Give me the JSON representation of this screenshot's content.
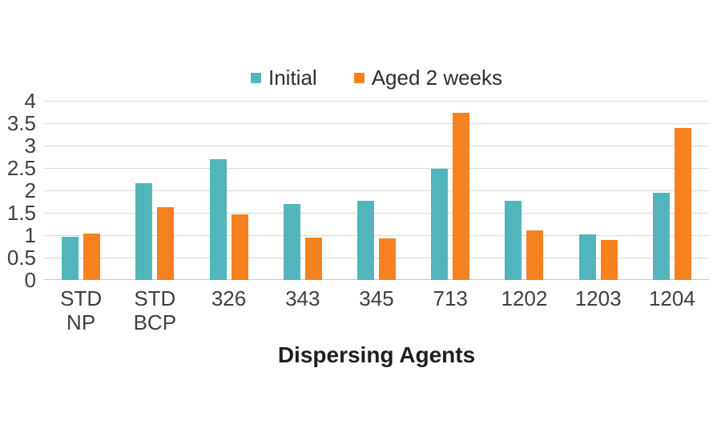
{
  "chart_data": {
    "type": "bar",
    "title": "",
    "xlabel": "Dispersing Agents",
    "ylabel": "",
    "categories": [
      "STD\nNP",
      "STD\nBCP",
      "326",
      "343",
      "345",
      "713",
      "1202",
      "1203",
      "1204"
    ],
    "series": [
      {
        "name": "Initial",
        "color": "#52b5bd",
        "values": [
          0.97,
          2.16,
          2.69,
          1.69,
          1.77,
          2.48,
          1.77,
          1.02,
          1.95
        ]
      },
      {
        "name": "Aged 2 weeks",
        "color": "#f5821f",
        "values": [
          1.04,
          1.62,
          1.46,
          0.95,
          0.92,
          3.74,
          1.11,
          0.89,
          3.4
        ]
      }
    ],
    "ylim": [
      0,
      4
    ],
    "ytick_step": 0.5,
    "yticks": [
      "0",
      "0.5",
      "1",
      "1.5",
      "2",
      "2.5",
      "3",
      "3.5",
      "4"
    ],
    "grid": "horizontal",
    "legend_position": "top-center",
    "colors": {
      "gridline": "#d9d9d9",
      "baseline": "#c6c6c6",
      "tick_text": "#3f3f3f",
      "axis_title_text": "#1f1f1f",
      "background": "#ffffff"
    }
  }
}
